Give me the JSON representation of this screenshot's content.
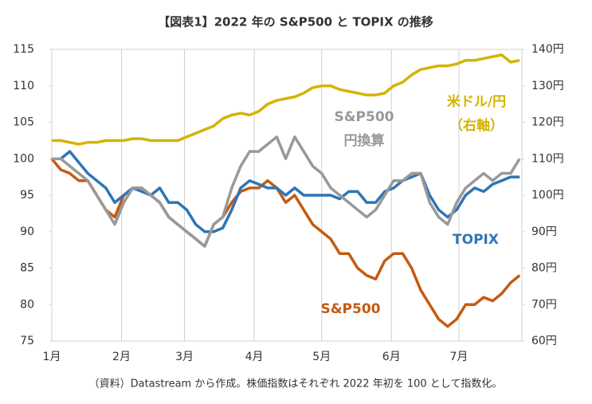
{
  "chart_data": {
    "type": "line",
    "title": "【図表1】2022 年の S&P500 と TOPIX の推移",
    "footnote": "（資料）Datastream から作成。株価指数はそれぞれ 2022 年初を 100 として指数化。",
    "x": [
      0,
      4,
      8,
      12,
      16,
      20,
      24,
      28,
      32,
      36,
      40,
      44,
      48,
      52,
      56,
      60,
      64,
      68,
      72,
      76,
      80,
      84,
      88,
      92,
      96,
      100,
      104,
      108,
      112,
      116,
      120,
      124,
      128,
      132,
      136,
      140,
      144,
      148,
      152,
      156,
      160,
      164,
      168,
      172,
      176,
      180,
      184,
      188,
      192,
      196,
      200,
      204,
      208
    ],
    "xlim": [
      0,
      209
    ],
    "xticks": [
      {
        "value": 0,
        "label": "1月"
      },
      {
        "value": 31,
        "label": "2月"
      },
      {
        "value": 59,
        "label": "3月"
      },
      {
        "value": 90,
        "label": "4月"
      },
      {
        "value": 120,
        "label": "5月"
      },
      {
        "value": 151,
        "label": "6月"
      },
      {
        "value": 181,
        "label": "7月"
      }
    ],
    "ylim": [
      75,
      115
    ],
    "yticks": [
      75,
      80,
      85,
      90,
      95,
      100,
      105,
      110,
      115
    ],
    "y2lim": [
      60,
      140
    ],
    "y2ticks": [
      {
        "value": 60,
        "label": "60円"
      },
      {
        "value": 70,
        "label": "70円"
      },
      {
        "value": 80,
        "label": "80円"
      },
      {
        "value": 90,
        "label": "90円"
      },
      {
        "value": 100,
        "label": "100円"
      },
      {
        "value": 110,
        "label": "110円"
      },
      {
        "value": 120,
        "label": "120円"
      },
      {
        "value": 130,
        "label": "130円"
      },
      {
        "value": 140,
        "label": "140円"
      }
    ],
    "grid": true,
    "series": [
      {
        "name": "米ドル/円 （右軸）",
        "color": "#d4b400",
        "axis": "y2",
        "values": [
          115,
          115,
          114.5,
          114,
          114.5,
          114.5,
          115,
          115,
          115,
          115.5,
          115.5,
          115,
          115,
          115,
          115,
          116,
          117,
          118,
          119,
          121,
          122,
          122.5,
          122,
          123,
          125,
          126,
          126.5,
          127,
          128,
          129.5,
          130,
          130,
          129,
          128.5,
          128,
          127.5,
          127.5,
          128,
          130,
          131,
          133,
          134.5,
          135,
          135.5,
          135.5,
          136,
          137,
          137,
          137.5,
          138,
          138.5,
          136.5,
          137
        ]
      },
      {
        "name": "S&P500",
        "color": "#c55a11",
        "values": [
          100,
          98.5,
          98,
          97,
          97,
          95,
          93,
          92,
          95,
          96,
          96,
          95,
          94,
          92,
          91,
          90,
          89,
          88,
          91,
          92,
          94,
          95.5,
          96,
          96,
          97,
          96,
          94,
          95,
          93,
          91,
          90,
          89,
          87,
          87,
          85,
          84,
          83.5,
          86,
          87,
          87,
          85,
          82,
          80,
          78,
          77,
          78,
          80,
          80,
          81,
          80.5,
          81.5,
          83,
          84
        ]
      },
      {
        "name": "TOPIX",
        "color": "#2e75b6",
        "values": [
          100,
          100,
          101,
          99.5,
          98,
          97,
          96,
          94,
          95,
          96,
          95.5,
          95,
          96,
          94,
          94,
          93,
          91,
          90,
          90,
          90.5,
          93,
          96,
          97,
          96.5,
          96,
          96,
          95,
          96,
          95,
          95,
          95,
          95,
          94.5,
          95.5,
          95.5,
          94,
          94,
          95.5,
          96,
          97,
          97.5,
          98,
          95,
          93,
          92,
          93,
          95,
          96,
          95.5,
          96.5,
          97,
          97.5,
          97.5
        ]
      },
      {
        "name": "S&P500 円換算",
        "color": "#999999",
        "values": [
          100,
          100,
          99,
          98,
          97,
          95,
          93,
          91,
          94,
          96,
          96,
          95,
          94,
          92,
          91,
          90,
          89,
          88,
          91,
          92,
          96,
          99,
          101,
          101,
          102,
          103,
          100,
          103,
          101,
          99,
          98,
          96,
          95,
          94,
          93,
          92,
          93,
          95,
          97,
          97,
          98,
          98,
          94,
          92,
          91,
          94,
          96,
          97,
          98,
          97,
          98,
          98,
          100
        ]
      }
    ]
  }
}
